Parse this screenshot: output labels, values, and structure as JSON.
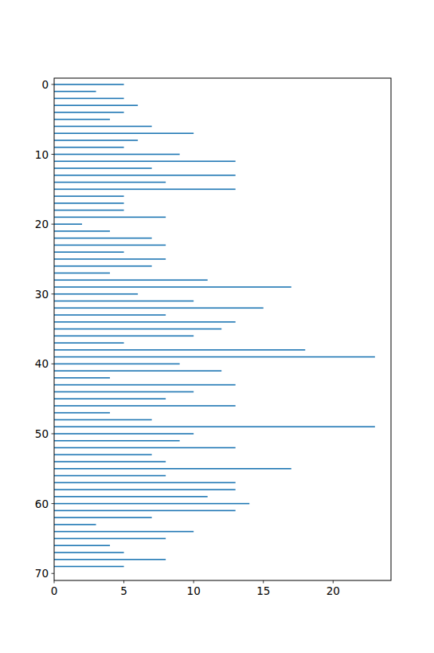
{
  "chart_data": {
    "type": "bar",
    "orientation": "horizontal",
    "color": "#1f77b4",
    "y": [
      0,
      1,
      2,
      3,
      4,
      5,
      6,
      7,
      8,
      9,
      10,
      11,
      12,
      13,
      14,
      15,
      16,
      17,
      18,
      19,
      20,
      21,
      22,
      23,
      24,
      25,
      26,
      27,
      28,
      29,
      30,
      31,
      32,
      33,
      34,
      35,
      36,
      37,
      38,
      39,
      40,
      41,
      42,
      43,
      44,
      45,
      46,
      47,
      48,
      49,
      50,
      51,
      52,
      53,
      54,
      55,
      56,
      57,
      58,
      59,
      60,
      61,
      62,
      63,
      64,
      65,
      66,
      67,
      68,
      69
    ],
    "values": [
      5,
      3,
      5,
      6,
      5,
      4,
      7,
      10,
      6,
      5,
      9,
      13,
      7,
      13,
      8,
      13,
      5,
      5,
      5,
      8,
      2,
      4,
      7,
      8,
      5,
      8,
      7,
      4,
      11,
      17,
      6,
      10,
      15,
      8,
      13,
      12,
      10,
      5,
      18,
      23,
      9,
      12,
      4,
      13,
      10,
      8,
      13,
      4,
      7,
      23,
      10,
      9,
      13,
      7,
      8,
      17,
      8,
      13,
      13,
      11,
      14,
      13,
      7,
      3,
      10,
      8,
      4,
      5,
      8,
      5
    ],
    "xlim": [
      0,
      24.15
    ],
    "xticks": [
      0,
      5,
      10,
      15,
      20
    ],
    "ylim": [
      71,
      -0.9
    ],
    "yticks": [
      0,
      10,
      20,
      30,
      40,
      50,
      60,
      70
    ],
    "grid": false
  }
}
